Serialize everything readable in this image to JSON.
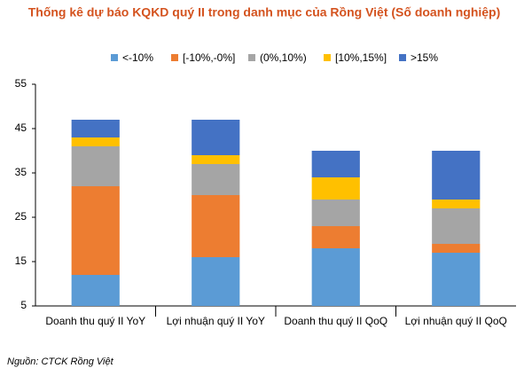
{
  "chart_data": {
    "type": "stacked_bar",
    "title": "Thống kê dự báo KQKD quý II trong danh mục của Rồng Việt (Số doanh nghiệp)",
    "categories": [
      "Doanh thu quý II YoY",
      "Lợi nhuận quý II YoY",
      "Doanh thu quý II QoQ",
      "Lợi nhuận quý II QoQ"
    ],
    "series": [
      {
        "name": "<-10%",
        "color": "#5b9bd5",
        "values": [
          12,
          16,
          18,
          17
        ]
      },
      {
        "name": "[-10%,-0%]",
        "color": "#ed7d31",
        "values": [
          20,
          14,
          5,
          2
        ]
      },
      {
        "name": "(0%,10%)",
        "color": "#a5a5a5",
        "values": [
          9,
          7,
          6,
          8
        ]
      },
      {
        "name": "[10%,15%]",
        "color": "#ffc000",
        "values": [
          2,
          2,
          5,
          2
        ]
      },
      {
        "name": ">15%",
        "color": "#4472c4",
        "values": [
          4,
          8,
          6,
          11
        ]
      }
    ],
    "ylim": [
      5,
      55
    ],
    "yticks": [
      5,
      15,
      25,
      35,
      45,
      55
    ],
    "grid": false,
    "legend": "top",
    "source": "Nguồn: CTCK Rồng Việt"
  }
}
